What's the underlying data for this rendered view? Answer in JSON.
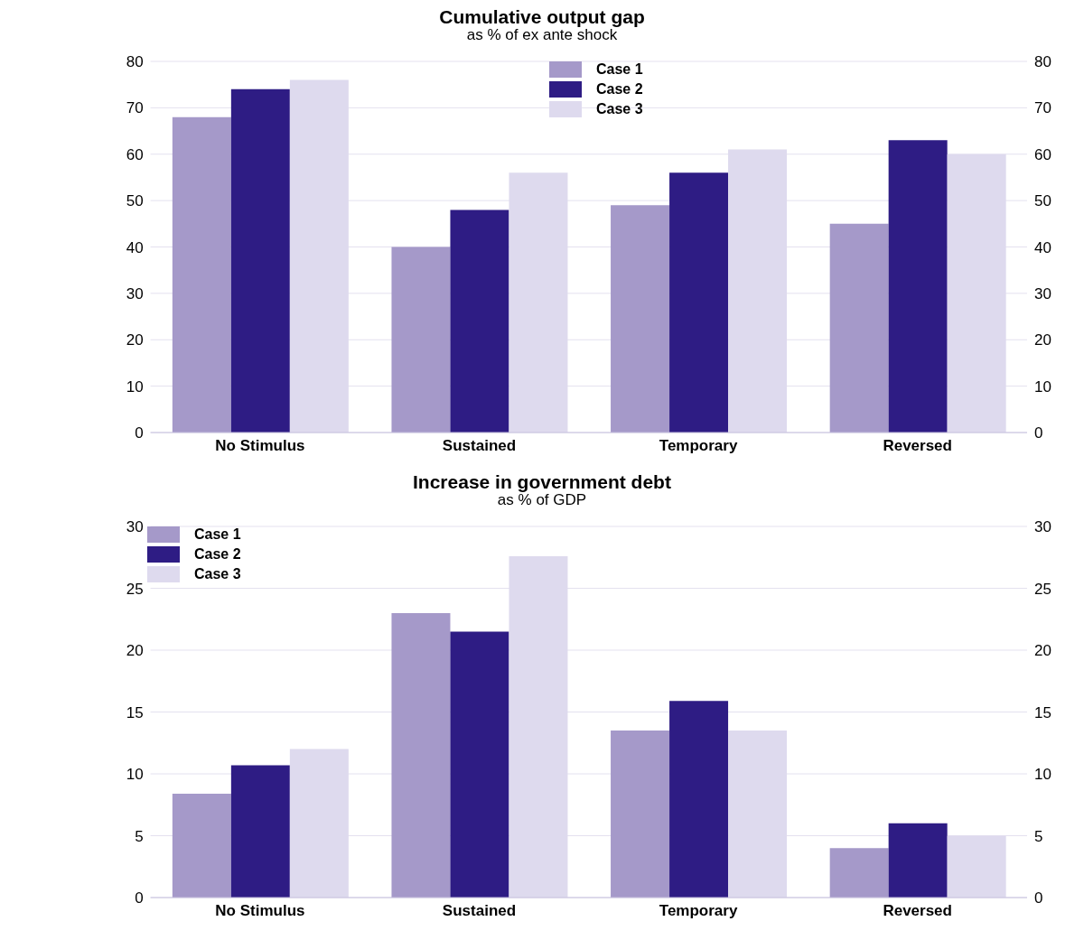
{
  "chart_data": [
    {
      "type": "bar",
      "title": "Cumulative output gap",
      "subtitle": "as % of ex ante shock",
      "categories": [
        "No Stimulus",
        "Sustained",
        "Temporary",
        "Reversed"
      ],
      "series": [
        {
          "name": "Case 1",
          "color": "#a599c9",
          "values": [
            68,
            40,
            49,
            45
          ]
        },
        {
          "name": "Case 2",
          "color": "#2e1c84",
          "values": [
            74,
            48,
            56,
            63
          ]
        },
        {
          "name": "Case 3",
          "color": "#dedaee",
          "values": [
            76,
            56,
            61,
            60
          ]
        }
      ],
      "ylim": [
        0,
        80
      ],
      "yticks": [
        0,
        10,
        20,
        30,
        40,
        50,
        60,
        70,
        80
      ],
      "y2lim": [
        0,
        80
      ],
      "y2ticks": [
        0,
        10,
        20,
        30,
        40,
        50,
        60,
        70,
        80
      ],
      "grid": "y",
      "legend": "top"
    },
    {
      "type": "bar",
      "title": "Increase in government debt",
      "subtitle": "as % of GDP",
      "categories": [
        "No Stimulus",
        "Sustained",
        "Temporary",
        "Reversed"
      ],
      "series": [
        {
          "name": "Case 1",
          "color": "#a599c9",
          "values": [
            8.4,
            23,
            13.5,
            4
          ]
        },
        {
          "name": "Case 2",
          "color": "#2e1c84",
          "values": [
            10.7,
            21.5,
            15.9,
            6
          ]
        },
        {
          "name": "Case 3",
          "color": "#dedaee",
          "values": [
            12,
            27.6,
            13.5,
            5
          ]
        }
      ],
      "ylim": [
        0,
        30
      ],
      "yticks": [
        0,
        5,
        10,
        15,
        20,
        25,
        30
      ],
      "y2lim": [
        0,
        30
      ],
      "y2ticks": [
        0,
        5,
        10,
        15,
        20,
        25,
        30
      ],
      "grid": "y",
      "legend": "top left"
    }
  ]
}
